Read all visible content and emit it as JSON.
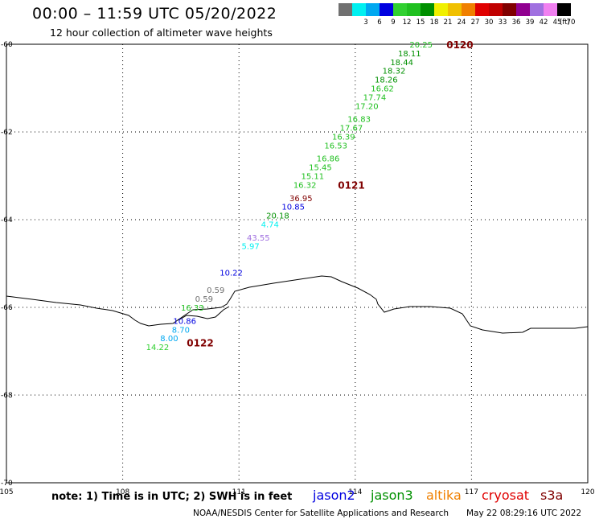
{
  "header": {
    "title": "00:00 – 11:59 UTC 05/20/2022",
    "subtitle": "12 hour collection of altimeter wave heights"
  },
  "legend": {
    "swatches": [
      {
        "color": "#707070",
        "label": ""
      },
      {
        "color": "#00f0f0",
        "label": "3"
      },
      {
        "color": "#00a8f0",
        "label": "6"
      },
      {
        "color": "#0000e0",
        "label": "9"
      },
      {
        "color": "#30d030",
        "label": "12"
      },
      {
        "color": "#20c020",
        "label": "15"
      },
      {
        "color": "#009000",
        "label": "18"
      },
      {
        "color": "#f0f000",
        "label": "21"
      },
      {
        "color": "#f0c000",
        "label": "24"
      },
      {
        "color": "#f08000",
        "label": "27"
      },
      {
        "color": "#e00000",
        "label": "30"
      },
      {
        "color": "#c00000",
        "label": "33"
      },
      {
        "color": "#800000",
        "label": "36"
      },
      {
        "color": "#900090",
        "label": "39"
      },
      {
        "color": "#a070e0",
        "label": "42"
      },
      {
        "color": "#f080f0",
        "label": "45"
      },
      {
        "color": "#000000",
        "label": "70"
      }
    ],
    "unit": "(ft)"
  },
  "map": {
    "lon_range": [
      105,
      120
    ],
    "lat_range": [
      -70,
      -60
    ],
    "lon_ticks": [
      "105",
      "108",
      "111",
      "114",
      "117",
      "120"
    ],
    "lat_ticks": [
      "-60",
      "-62",
      "-64",
      "-66",
      "-68",
      "-70"
    ],
    "pass_labels": [
      {
        "text": "0120",
        "lon": 116.7,
        "lat": -60.0,
        "color": "#800000"
      },
      {
        "text": "0121",
        "lon": 113.9,
        "lat": -63.2,
        "color": "#800000"
      },
      {
        "text": "0122",
        "lon": 110.0,
        "lat": -66.8,
        "color": "#800000"
      }
    ],
    "observations": [
      {
        "value": "20.25",
        "lon": 115.7,
        "lat": -60.0,
        "color": "#20c020"
      },
      {
        "value": "18.11",
        "lon": 115.4,
        "lat": -60.2,
        "color": "#009000"
      },
      {
        "value": "18.44",
        "lon": 115.2,
        "lat": -60.4,
        "color": "#009000"
      },
      {
        "value": "18.32",
        "lon": 115.0,
        "lat": -60.6,
        "color": "#009000"
      },
      {
        "value": "18.26",
        "lon": 114.8,
        "lat": -60.8,
        "color": "#009000"
      },
      {
        "value": "16.62",
        "lon": 114.7,
        "lat": -61.0,
        "color": "#20c020"
      },
      {
        "value": "17.74",
        "lon": 114.5,
        "lat": -61.2,
        "color": "#20c020"
      },
      {
        "value": "17.20",
        "lon": 114.3,
        "lat": -61.4,
        "color": "#20c020"
      },
      {
        "value": "16.83",
        "lon": 114.1,
        "lat": -61.7,
        "color": "#20c020"
      },
      {
        "value": "17.67",
        "lon": 113.9,
        "lat": -61.9,
        "color": "#20c020"
      },
      {
        "value": "16.39",
        "lon": 113.7,
        "lat": -62.1,
        "color": "#20c020"
      },
      {
        "value": "16.53",
        "lon": 113.5,
        "lat": -62.3,
        "color": "#20c020"
      },
      {
        "value": "16.86",
        "lon": 113.3,
        "lat": -62.6,
        "color": "#20c020"
      },
      {
        "value": "15.45",
        "lon": 113.1,
        "lat": -62.8,
        "color": "#20c020"
      },
      {
        "value": "15.11",
        "lon": 112.9,
        "lat": -63.0,
        "color": "#20c020"
      },
      {
        "value": "16.32",
        "lon": 112.7,
        "lat": -63.2,
        "color": "#20c020"
      },
      {
        "value": "36.95",
        "lon": 112.6,
        "lat": -63.5,
        "color": "#800000"
      },
      {
        "value": "10.85",
        "lon": 112.4,
        "lat": -63.7,
        "color": "#0000e0"
      },
      {
        "value": "20.18",
        "lon": 112.0,
        "lat": -63.9,
        "color": "#009000"
      },
      {
        "value": "4.74",
        "lon": 111.8,
        "lat": -64.1,
        "color": "#00f0f0"
      },
      {
        "value": "43.55",
        "lon": 111.5,
        "lat": -64.4,
        "color": "#a070e0"
      },
      {
        "value": "5.97",
        "lon": 111.3,
        "lat": -64.6,
        "color": "#00f0f0"
      },
      {
        "value": "10.22",
        "lon": 110.8,
        "lat": -65.2,
        "color": "#0000e0"
      },
      {
        "value": "0.59",
        "lon": 110.4,
        "lat": -65.6,
        "color": "#707070"
      },
      {
        "value": "0.59",
        "lon": 110.1,
        "lat": -65.8,
        "color": "#707070"
      },
      {
        "value": "16.33",
        "lon": 109.8,
        "lat": -66.0,
        "color": "#20c020"
      },
      {
        "value": "10.86",
        "lon": 109.6,
        "lat": -66.3,
        "color": "#0000e0"
      },
      {
        "value": "8.70",
        "lon": 109.5,
        "lat": -66.5,
        "color": "#00a8f0"
      },
      {
        "value": "8.00",
        "lon": 109.2,
        "lat": -66.7,
        "color": "#00a8f0"
      },
      {
        "value": "14.22",
        "lon": 108.9,
        "lat": -66.9,
        "color": "#30d030"
      }
    ]
  },
  "footer": {
    "note": "note: 1) Time is in UTC; 2) SWH is in feet",
    "satellites": [
      {
        "name": "jason2",
        "color": "#0000e0"
      },
      {
        "name": "jason3",
        "color": "#009000"
      },
      {
        "name": "altika",
        "color": "#f08000"
      },
      {
        "name": "cryosat",
        "color": "#e00000"
      },
      {
        "name": "s3a",
        "color": "#800000"
      }
    ],
    "credit": "NOAA/NESDIS Center for Satellite Applications and Research",
    "timestamp": "May 22 08:29:16 UTC 2022"
  }
}
